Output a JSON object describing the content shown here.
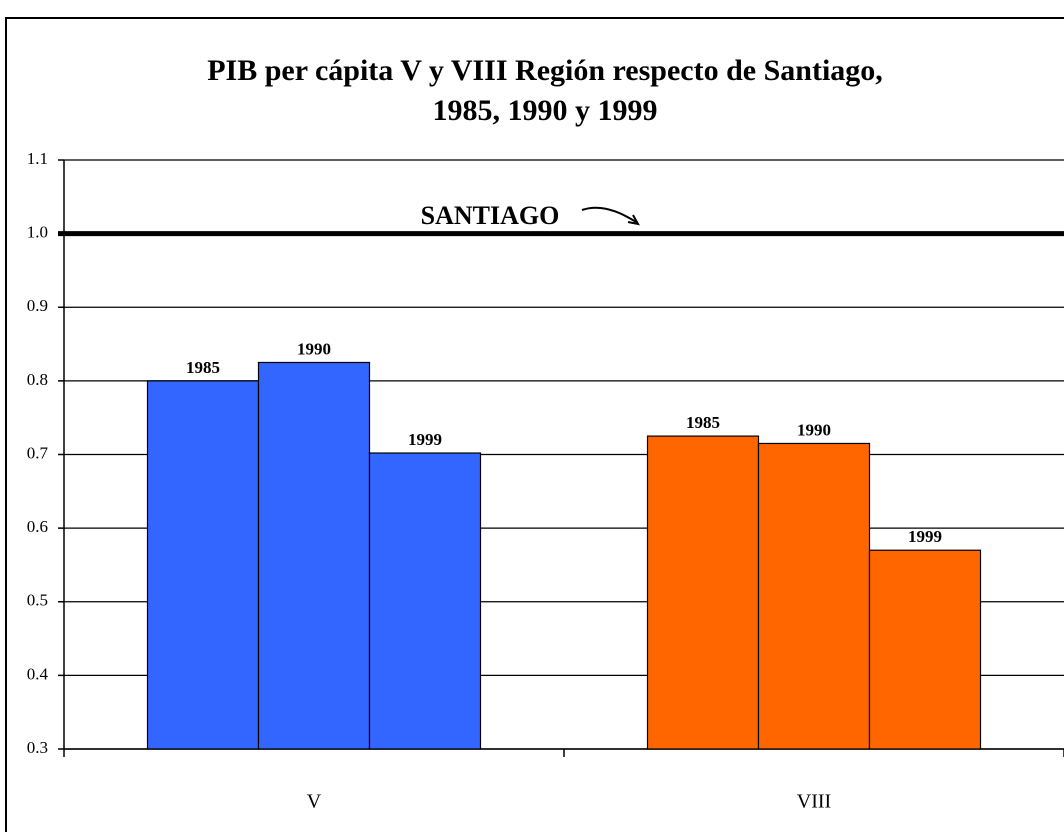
{
  "chart_data": {
    "type": "bar",
    "title": [
      "PIB per cápita V y VIII Región respecto de Santiago,",
      "1985, 1990 y 1999"
    ],
    "categories": [
      "V",
      "VIII"
    ],
    "category_colors": [
      "#3366ff",
      "#ff6600"
    ],
    "series": [
      {
        "name": "1985",
        "values": [
          0.8,
          0.725
        ]
      },
      {
        "name": "1990",
        "values": [
          0.825,
          0.715
        ]
      },
      {
        "name": "1999",
        "values": [
          0.702,
          0.57
        ]
      }
    ],
    "ylim": [
      0.3,
      1.1
    ],
    "yticks": [
      0.3,
      0.4,
      0.5,
      0.6,
      0.7,
      0.8,
      0.9,
      {
        "value": 1,
        "label": "1.0"
      },
      1.1
    ],
    "grid": true,
    "reference_line": {
      "value": 1,
      "label": "SANTIAGO"
    }
  }
}
